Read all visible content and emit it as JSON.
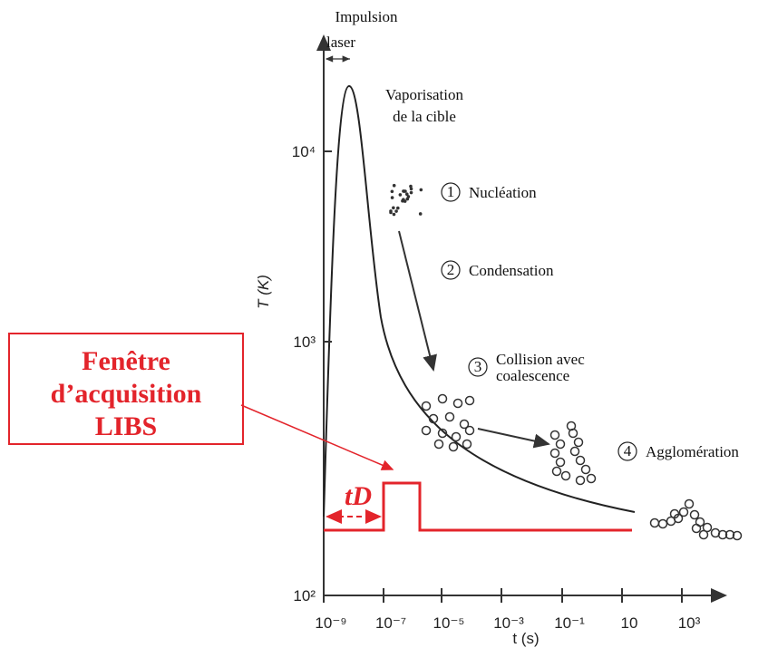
{
  "axes": {
    "y_label": "T (K)",
    "x_label": "t (s)",
    "yticks": [
      "10²",
      "10³",
      "10⁴"
    ],
    "xticks": [
      "10⁻⁹",
      "10⁻⁷",
      "10⁻⁵",
      "10⁻³",
      "10⁻¹",
      "10",
      "10³"
    ]
  },
  "annotations": {
    "pulse": [
      "Impulsion",
      "laser"
    ],
    "vaporisation": [
      "Vaporisation",
      "de la cible"
    ],
    "delay": "tD"
  },
  "stages": [
    {
      "number": "1",
      "label": [
        "Nucléation"
      ]
    },
    {
      "number": "2",
      "label": [
        "Condensation"
      ]
    },
    {
      "number": "3",
      "label": [
        "Collision avec",
        "coalescence"
      ]
    },
    {
      "number": "4",
      "label": [
        "Agglomération"
      ]
    }
  ],
  "window_box": [
    "Fenêtre",
    "d’acquisition",
    "LIBS"
  ]
}
